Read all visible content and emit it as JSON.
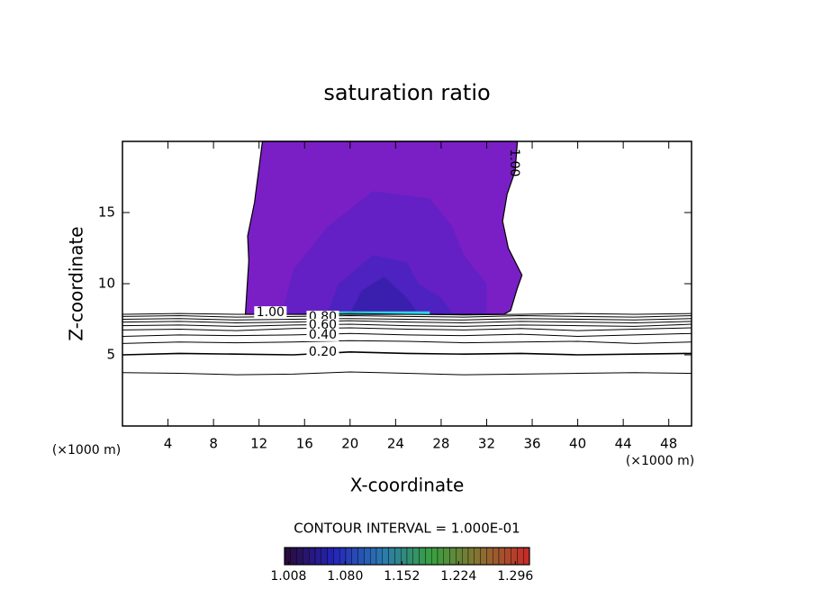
{
  "chart_data": {
    "type": "contour",
    "title": "saturation ratio",
    "x_label": "X-coordinate",
    "y_label": "Z-coordinate",
    "x_unit": "(×1000 m)",
    "y_unit": "(×1000 m)",
    "xlim": [
      0,
      50
    ],
    "ylim": [
      0,
      20
    ],
    "xticks": [
      4,
      8,
      12,
      16,
      20,
      24,
      28,
      32,
      36,
      40,
      44,
      48
    ],
    "yticks": [
      5,
      10,
      15
    ],
    "regions": [
      {
        "color": "#7a1fc6",
        "x": [
          10.8,
          11.1,
          11.0,
          11.6,
          12.3,
          34.7,
          34.5,
          33.8,
          33.4,
          33.9,
          35.1,
          34.7,
          34.1,
          33.5
        ],
        "y": [
          7.85,
          11.6,
          13.35,
          15.7,
          20,
          20,
          17.9,
          16.3,
          14.4,
          12.5,
          10.6,
          9.7,
          8.1,
          7.85
        ]
      },
      {
        "color": "#6420c4",
        "x": [
          14,
          15,
          18,
          22,
          27,
          29,
          30,
          32,
          32
        ],
        "y": [
          7.9,
          11,
          14,
          16.5,
          16,
          14,
          12,
          10,
          7.9
        ]
      },
      {
        "color": "#4e22c0",
        "x": [
          18,
          19,
          22,
          25,
          26,
          28,
          29
        ],
        "y": [
          7.9,
          10,
          12,
          11.5,
          10,
          9,
          7.9
        ]
      },
      {
        "color": "#3a1fae",
        "x": [
          20,
          21,
          23,
          25,
          26
        ],
        "y": [
          7.9,
          9.5,
          10.5,
          9,
          7.9
        ]
      },
      {
        "color": "#2fd5e6",
        "x": [
          17,
          27,
          27,
          17
        ],
        "y": [
          7.85,
          7.85,
          8.05,
          8.05
        ]
      }
    ],
    "contour_x": [
      0,
      5,
      10,
      15,
      20,
      25,
      30,
      35,
      40,
      45,
      50
    ],
    "contours": [
      [
        3.75,
        3.7,
        3.6,
        3.65,
        3.8,
        3.7,
        3.6,
        3.65,
        3.7,
        3.75,
        3.7
      ],
      [
        5.0,
        5.1,
        5.05,
        5.0,
        5.2,
        5.1,
        5.05,
        5.1,
        5.0,
        5.05,
        5.1
      ],
      [
        5.8,
        5.9,
        5.85,
        5.9,
        6.0,
        5.95,
        5.85,
        5.9,
        5.95,
        5.8,
        5.9
      ],
      [
        6.3,
        6.4,
        6.35,
        6.4,
        6.5,
        6.4,
        6.35,
        6.45,
        6.3,
        6.4,
        6.5
      ],
      [
        6.75,
        6.8,
        6.7,
        6.85,
        6.9,
        6.8,
        6.75,
        6.85,
        6.7,
        6.8,
        6.9
      ],
      [
        7.05,
        7.1,
        7.0,
        7.1,
        7.15,
        7.05,
        7.0,
        7.1,
        7.05,
        7.0,
        7.15
      ],
      [
        7.3,
        7.35,
        7.25,
        7.3,
        7.4,
        7.3,
        7.25,
        7.35,
        7.3,
        7.25,
        7.35
      ],
      [
        7.5,
        7.55,
        7.45,
        7.5,
        7.55,
        7.5,
        7.45,
        7.55,
        7.5,
        7.45,
        7.55
      ],
      [
        7.7,
        7.75,
        7.65,
        7.7,
        7.75,
        7.7,
        7.65,
        7.75,
        7.7,
        7.65,
        7.75
      ],
      [
        7.85,
        7.9,
        7.85,
        7.85,
        7.9,
        7.85,
        7.8,
        7.85,
        7.9,
        7.85,
        7.9
      ]
    ],
    "contour_labels": [
      {
        "value": 1,
        "label": "1.00",
        "x": 34.4,
        "y": 18.5
      },
      {
        "value": 1,
        "label": "1.00",
        "x": 13.0,
        "y": 7.97
      },
      {
        "value": 0.8,
        "label": "0.80",
        "x": 17.6,
        "y": 7.66
      },
      {
        "value": 0.6,
        "label": "0.60",
        "x": 17.6,
        "y": 7.09
      },
      {
        "value": 0.4,
        "label": "0.40",
        "x": 17.6,
        "y": 6.4
      },
      {
        "value": 0.2,
        "label": "0.20",
        "x": 17.6,
        "y": 5.2
      }
    ],
    "contour_interval": "CONTOUR INTERVAL = 1.000E-01",
    "clim": [
      1.003,
      1.314
    ],
    "colormap": [
      "#2a0a36",
      "#2424b8",
      "#2a7ab0",
      "#38a040",
      "#8a7030",
      "#c82828"
    ],
    "cticks": [
      1.008,
      {
        "value": 1.08,
        "label": "1.080"
      },
      1.152,
      1.224,
      1.296
    ]
  }
}
